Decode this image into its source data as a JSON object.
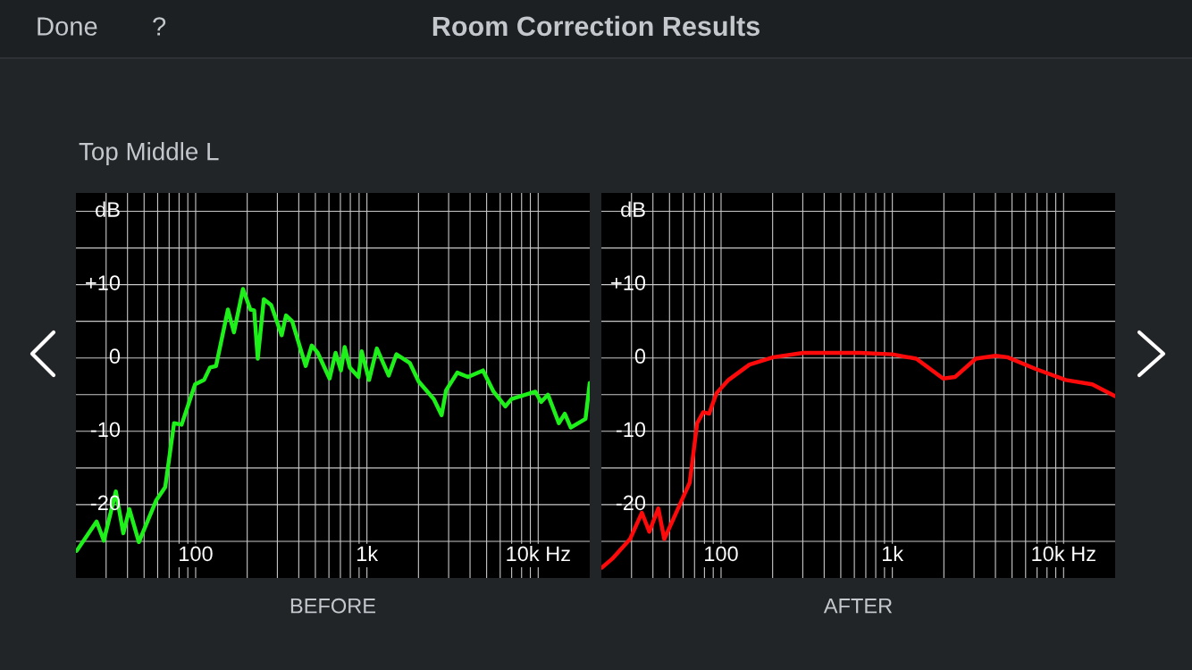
{
  "chart_data": [
    {
      "type": "line",
      "title": "Room Correction Results",
      "subtitle": "Top Middle L",
      "xlabel": "BEFORE",
      "annotations": [
        "Done",
        "?"
      ],
      "log": "x",
      "grid": true,
      "xlim": [
        20,
        20000
      ],
      "ylim": [
        -30,
        22.5
      ],
      "xticks": [
        {
          "value": 30,
          "label": null
        },
        {
          "value": 40,
          "label": null
        },
        {
          "value": 50,
          "label": null
        },
        {
          "value": 60,
          "label": null
        },
        {
          "value": 70,
          "label": null
        },
        {
          "value": 80,
          "label": null
        },
        {
          "value": 90,
          "label": null
        },
        100,
        {
          "value": 200,
          "label": null
        },
        {
          "value": 300,
          "label": null
        },
        {
          "value": 400,
          "label": null
        },
        {
          "value": 500,
          "label": null
        },
        {
          "value": 600,
          "label": null
        },
        {
          "value": 700,
          "label": null
        },
        {
          "value": 800,
          "label": null
        },
        {
          "value": 900,
          "label": null
        },
        {
          "value": 1000,
          "label": "1k"
        },
        {
          "value": 2000,
          "label": null
        },
        {
          "value": 3000,
          "label": null
        },
        {
          "value": 4000,
          "label": null
        },
        {
          "value": 5000,
          "label": null
        },
        {
          "value": 6000,
          "label": null
        },
        {
          "value": 7000,
          "label": null
        },
        {
          "value": 8000,
          "label": null
        },
        {
          "value": 9000,
          "label": null
        },
        {
          "value": 10000,
          "label": "10k Hz"
        }
      ],
      "yticks": [
        {
          "value": -25,
          "label": null
        },
        -20,
        {
          "value": -15,
          "label": null
        },
        -10,
        {
          "value": -5,
          "label": null
        },
        0,
        {
          "value": 5,
          "label": null
        },
        {
          "value": 10,
          "label": "+10"
        },
        {
          "value": 15,
          "label": null
        },
        {
          "value": 20,
          "label": "dB"
        }
      ],
      "series": [
        {
          "color": "#1ef01a",
          "x": [
            20.2,
            26.4,
            29.1,
            34.2,
            37.8,
            41.0,
            46.6,
            58.9,
            66.4,
            74.8,
            82.8,
            99.2,
            111.9,
            121.3,
            131.5,
            154.3,
            167.3,
            188.9,
            208.6,
            219.6,
            230.5,
            250,
            276,
            318,
            337,
            366,
            439,
            476,
            516,
            605,
            656,
            705,
            741,
            795,
            893,
            932,
            1029,
            1143,
            1340,
            1487,
            1782,
            2004,
            2458,
            2729,
            2900,
            3370,
            3890,
            4760,
            5490,
            6430,
            6990,
            9630,
            10400,
            11400,
            13200,
            14300,
            15500,
            18900,
            20000
          ],
          "values": [
            -26.3,
            -22.3,
            -24.9,
            -18.2,
            -23.9,
            -20.6,
            -25.1,
            -19.4,
            -17.6,
            -8.9,
            -9.1,
            -3.6,
            -3.0,
            -1.3,
            -1.1,
            6.6,
            3.5,
            9.4,
            6.6,
            6.5,
            -0.1,
            8.0,
            7.2,
            3.1,
            5.8,
            5.0,
            -1.1,
            1.7,
            0.7,
            -2.8,
            0.7,
            -1.7,
            1.5,
            -1.3,
            -2.6,
            0.9,
            -3.0,
            1.3,
            -2.4,
            0.5,
            -0.7,
            -3.2,
            -5.6,
            -7.8,
            -4.4,
            -2.0,
            -2.6,
            -1.7,
            -4.6,
            -6.6,
            -5.6,
            -4.6,
            -6.0,
            -5.0,
            -8.9,
            -7.6,
            -9.5,
            -8.3,
            -3.4
          ]
        }
      ]
    },
    {
      "type": "line",
      "xlabel": "AFTER",
      "log": "x",
      "grid": true,
      "xlim": [
        20,
        20000
      ],
      "ylim": [
        -30,
        22.5
      ],
      "xticks": [
        {
          "value": 30,
          "label": null
        },
        {
          "value": 40,
          "label": null
        },
        {
          "value": 50,
          "label": null
        },
        {
          "value": 60,
          "label": null
        },
        {
          "value": 70,
          "label": null
        },
        {
          "value": 80,
          "label": null
        },
        {
          "value": 90,
          "label": null
        },
        100,
        {
          "value": 200,
          "label": null
        },
        {
          "value": 300,
          "label": null
        },
        {
          "value": 400,
          "label": null
        },
        {
          "value": 500,
          "label": null
        },
        {
          "value": 600,
          "label": null
        },
        {
          "value": 700,
          "label": null
        },
        {
          "value": 800,
          "label": null
        },
        {
          "value": 900,
          "label": null
        },
        {
          "value": 1000,
          "label": "1k"
        },
        {
          "value": 2000,
          "label": null
        },
        {
          "value": 3000,
          "label": null
        },
        {
          "value": 4000,
          "label": null
        },
        {
          "value": 5000,
          "label": null
        },
        {
          "value": 6000,
          "label": null
        },
        {
          "value": 7000,
          "label": null
        },
        {
          "value": 8000,
          "label": null
        },
        {
          "value": 9000,
          "label": null
        },
        {
          "value": 10000,
          "label": "10k Hz"
        }
      ],
      "yticks": [
        {
          "value": -25,
          "label": null
        },
        -20,
        {
          "value": -15,
          "label": null
        },
        -10,
        {
          "value": -5,
          "label": null
        },
        0,
        {
          "value": 5,
          "label": null
        },
        {
          "value": 10,
          "label": "+10"
        },
        {
          "value": 15,
          "label": null
        },
        {
          "value": 20,
          "label": "dB"
        }
      ],
      "series": [
        {
          "color": "#ff0a0a",
          "x": [
            20.1,
            23.1,
            29.4,
            34.5,
            38.1,
            43.0,
            46.6,
            55.9,
            65.6,
            72.5,
            78.6,
            85.2,
            94.1,
            110.5,
            146.5,
            202,
            302,
            489,
            647,
            1000,
            1380,
            1980,
            2320,
            3070,
            4010,
            4700,
            6870,
            10300,
            14700,
            20000
          ],
          "values": [
            -28.6,
            -27.4,
            -24.7,
            -21.1,
            -23.7,
            -20.5,
            -24.7,
            -20.6,
            -17.0,
            -8.9,
            -7.4,
            -7.6,
            -4.8,
            -3.0,
            -0.9,
            0.1,
            0.7,
            0.7,
            0.7,
            0.5,
            -0.1,
            -2.8,
            -2.6,
            -0.1,
            0.3,
            0.1,
            -1.5,
            -3.0,
            -3.6,
            -5.2
          ]
        }
      ]
    }
  ]
}
